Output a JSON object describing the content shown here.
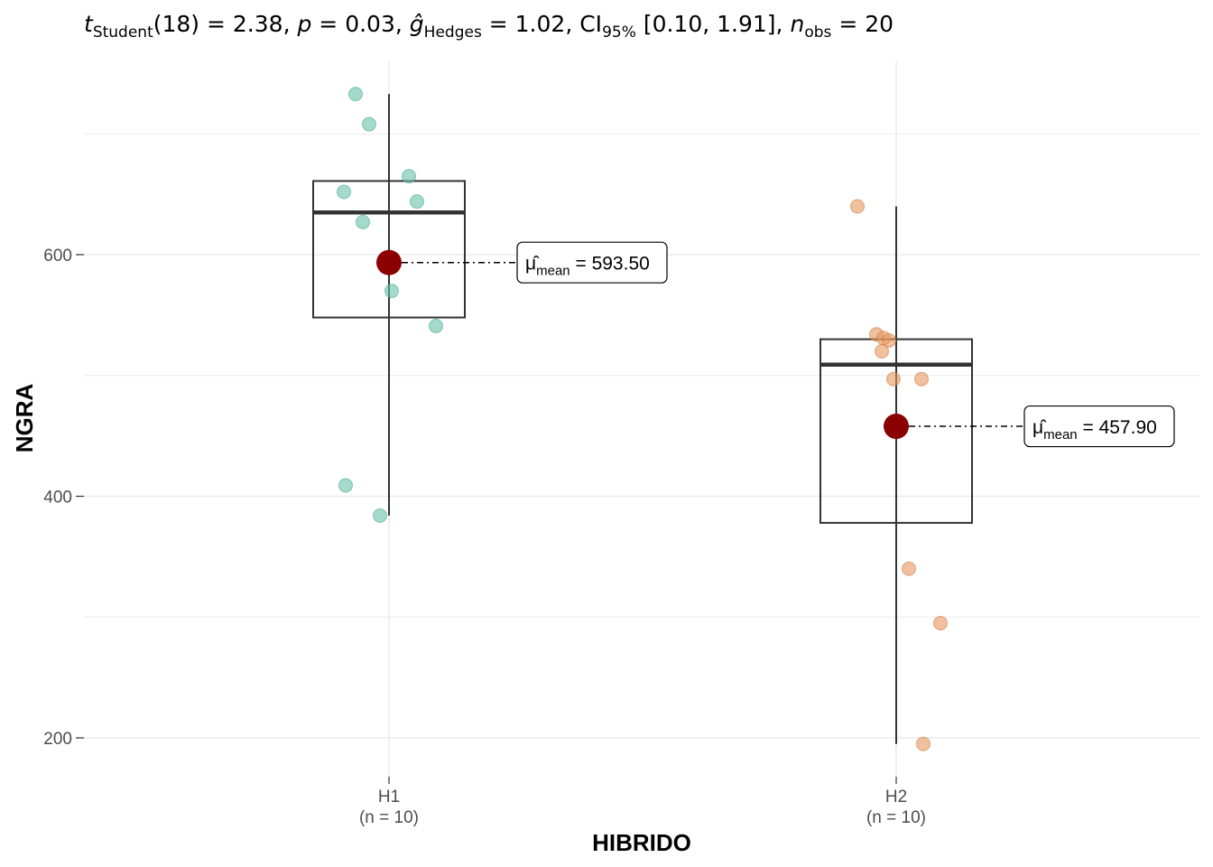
{
  "subtitle": {
    "t_symbol": "t",
    "t_sub": "Student",
    "df": "(18)",
    "t_value": "2.38",
    "p_symbol": "p",
    "p_value": "0.03",
    "g_symbol": "ĝ",
    "g_sub": "Hedges",
    "g_value": "1.02",
    "ci_symbol": "CI",
    "ci_sub": "95%",
    "ci_value": "[0.10, 1.91]",
    "n_symbol": "n",
    "n_sub": "obs",
    "n_value": "20"
  },
  "colors": {
    "H1": "#66C2A5",
    "H1_stroke": "#4aa888",
    "H2": "#E8965C",
    "H2_stroke": "#c97a44",
    "mean": "#8B0000",
    "grid": "#ebebeb",
    "box": "#333333"
  },
  "chart_data": {
    "type": "boxplot",
    "xlabel": "HIBRIDO",
    "ylabel": "NGRA",
    "ylim": [
      140,
      740
    ],
    "yticks": [
      200,
      400,
      600
    ],
    "grid": true,
    "categories": [
      "H1",
      "H2"
    ],
    "category_counts": [
      "(n = 10)",
      "(n = 10)"
    ],
    "groups": [
      {
        "name": "H1",
        "points": [
          733,
          708,
          665,
          652,
          644,
          627,
          570,
          541,
          409,
          384
        ],
        "box": {
          "whisker_low": 384,
          "q1": 548,
          "median": 635,
          "q3": 661,
          "whisker_high": 733
        },
        "mean": 593.5,
        "mean_label_mu": "μ̂",
        "mean_label_sub": "mean",
        "mean_label_value": "593.50"
      },
      {
        "name": "H2",
        "points": [
          640,
          534,
          531,
          529,
          520,
          497,
          497,
          340,
          295,
          195
        ],
        "box": {
          "whisker_low": 195,
          "q1": 378,
          "median": 509,
          "q3": 530,
          "whisker_high": 640
        },
        "mean": 457.9,
        "mean_label_mu": "μ̂",
        "mean_label_sub": "mean",
        "mean_label_value": "457.90"
      }
    ]
  }
}
